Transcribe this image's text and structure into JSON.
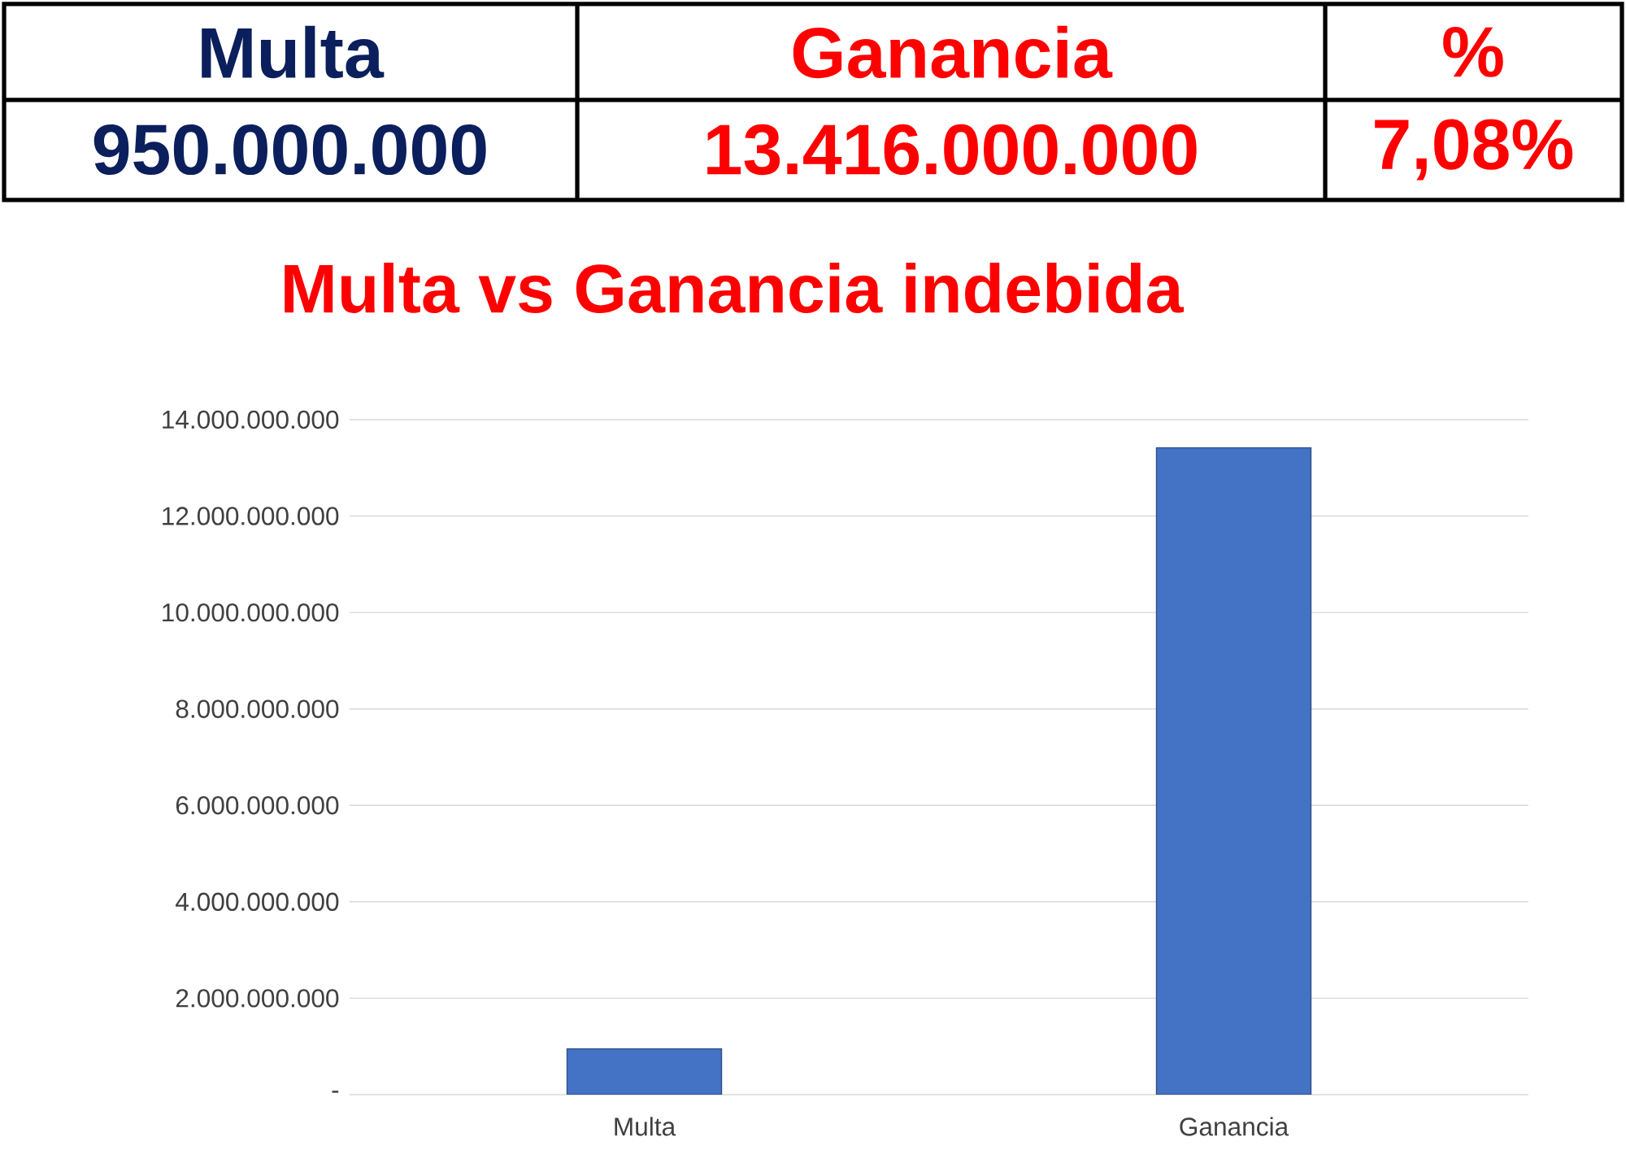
{
  "chart_data": {
    "type": "bar",
    "title": "Multa vs Ganancia indebida",
    "categories": [
      "Multa",
      "Ganancia"
    ],
    "values": [
      950000000,
      13416000000
    ],
    "color": "#4472c4",
    "ylim": [
      0,
      14000000000
    ],
    "yticks": [
      {
        "value": 0,
        "label": "-"
      },
      {
        "value": 2000000000,
        "label": "2.000.000.000"
      },
      {
        "value": 4000000000,
        "label": "4.000.000.000"
      },
      {
        "value": 6000000000,
        "label": "6.000.000.000"
      },
      {
        "value": 8000000000,
        "label": "8.000.000.000"
      },
      {
        "value": 10000000000,
        "label": "10.000.000.000"
      },
      {
        "value": 12000000000,
        "label": "12.000.000.000"
      },
      {
        "value": 14000000000,
        "label": "14.000.000.000"
      }
    ],
    "grid": "y",
    "annotations": [
      "950.000.000",
      "13.416.000.000",
      "%",
      "7,08%"
    ]
  }
}
